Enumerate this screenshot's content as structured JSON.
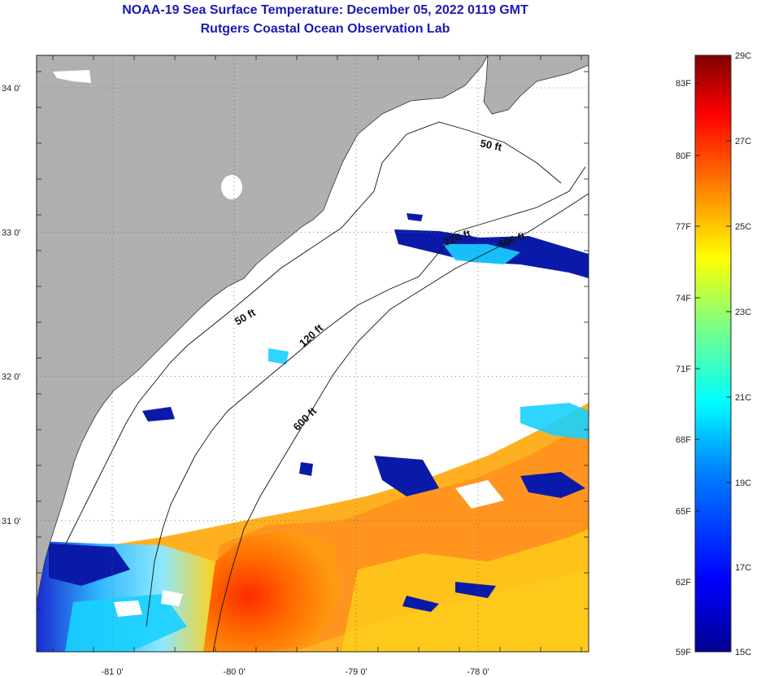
{
  "header": {
    "title": "NOAA-19 Sea Surface Temperature:  December 05, 2022 0119 GMT",
    "subtitle": "Rutgers Coastal Ocean Observation Lab"
  },
  "map": {
    "lon_ticks": [
      {
        "value": -81,
        "label": "-81 0'"
      },
      {
        "value": -80,
        "label": "-80 0'"
      },
      {
        "value": -79,
        "label": "-79 0'"
      },
      {
        "value": -78,
        "label": "-78 0'"
      }
    ],
    "lat_ticks": [
      {
        "value": 34,
        "label": "34 0'"
      },
      {
        "value": 33,
        "label": "33 0'"
      },
      {
        "value": 32,
        "label": "32 0'"
      },
      {
        "value": 31,
        "label": "31 0'"
      }
    ],
    "contour_labels": [
      "50 ft",
      "120 ft",
      "600 ft",
      "50 ft",
      "120 ft",
      "600 ft"
    ],
    "colors": {
      "land": "#b0b0b0",
      "ocean_nodata": "#ffffff",
      "grid": "#888888"
    }
  },
  "colorbar": {
    "fahrenheit_labels": [
      "83F",
      "80F",
      "77F",
      "74F",
      "71F",
      "68F",
      "65F",
      "62F",
      "59F"
    ],
    "celsius_labels": [
      "29C",
      "27C",
      "25C",
      "23C",
      "21C",
      "19C",
      "17C",
      "15C"
    ],
    "range_c": [
      15,
      29
    ],
    "colors": [
      "#00008f",
      "#0000ff",
      "#007fff",
      "#00ffff",
      "#7fff7f",
      "#ffff00",
      "#ff7f00",
      "#ff0000",
      "#7f0000"
    ]
  }
}
